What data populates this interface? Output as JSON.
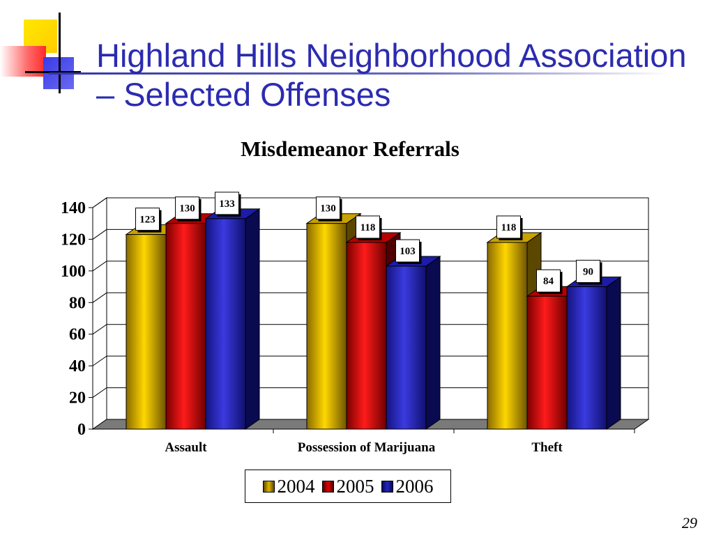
{
  "slide": {
    "title": "Highland Hills Neighborhood Association –  Selected Offenses",
    "page_number": "29"
  },
  "colors": {
    "title": "#2b2bb0",
    "series_2004": "#e0b400",
    "series_2005": "#e00000",
    "series_2006": "#2424c8"
  },
  "chart_data": {
    "type": "bar",
    "title": "Misdemeanor  Referrals",
    "categories": [
      "Assault",
      "Possession of Marijuana",
      "Theft"
    ],
    "series": [
      {
        "name": "2004",
        "values": [
          123,
          130,
          118
        ],
        "color": "#e0b400"
      },
      {
        "name": "2005",
        "values": [
          130,
          118,
          84
        ],
        "color": "#e00000"
      },
      {
        "name": "2006",
        "values": [
          133,
          103,
          90
        ],
        "color": "#2424c8"
      }
    ],
    "yticks": [
      "0",
      "20",
      "40",
      "60",
      "80",
      "100",
      "120",
      "140"
    ],
    "ylim": [
      0,
      140
    ],
    "grid": true,
    "legend_position": "bottom",
    "style": "3d-clustered"
  }
}
